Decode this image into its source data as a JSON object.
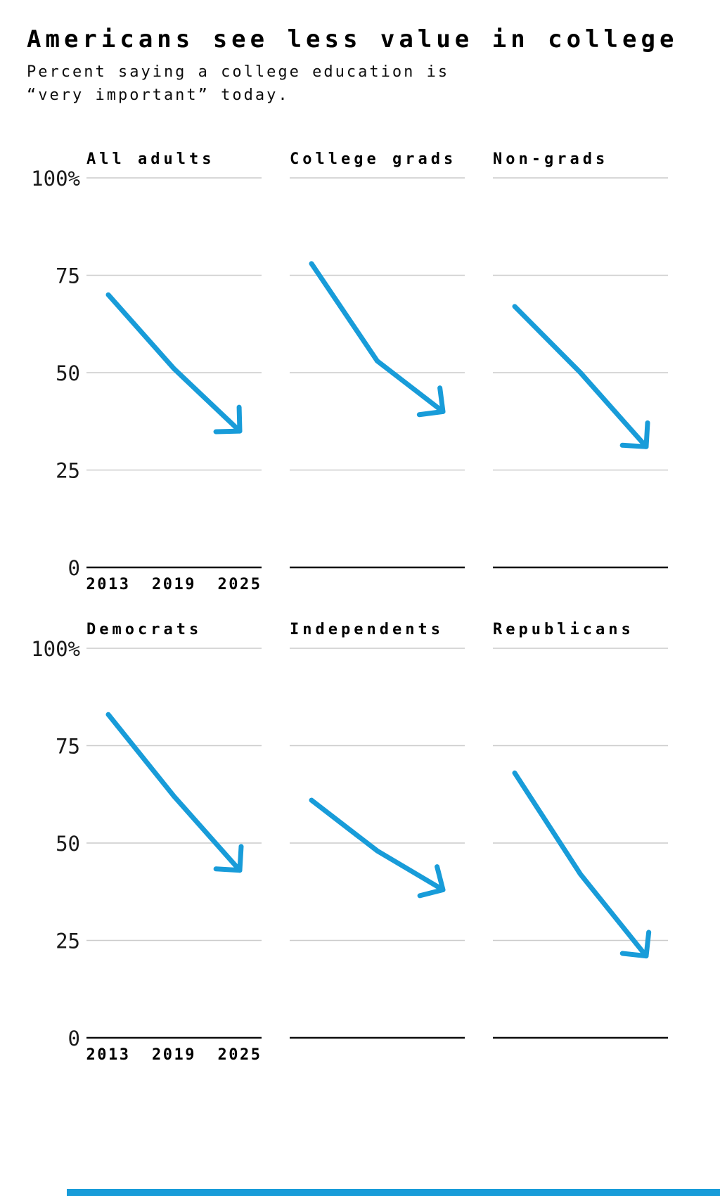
{
  "header": {
    "title": "Americans see less value in college",
    "subtitle_line1": "Percent saying a college education is",
    "subtitle_line2": "“very important” today."
  },
  "chart_data": {
    "type": "line",
    "title": "Americans see less value in college",
    "subtitle": "Percent saying a college education is “very important” today.",
    "x": [
      2013,
      2019,
      2025
    ],
    "x_tick_labels": [
      "2013",
      "2019",
      "2025"
    ],
    "y_axis_ticks": [
      "100%",
      "75",
      "50",
      "25",
      "0"
    ],
    "ylim": [
      0,
      100
    ],
    "y_gridline_values": [
      100,
      75,
      50,
      25,
      0
    ],
    "grid": true,
    "legend": "none",
    "line_style": "arrow-at-end",
    "line_color": "#189CD9",
    "gridline_color": "#cccccc",
    "axis_color": "#0d0d0d",
    "panels": [
      {
        "title": "All adults",
        "values": [
          70,
          51,
          35
        ]
      },
      {
        "title": "College grads",
        "values": [
          78,
          53,
          40
        ]
      },
      {
        "title": "Non-grads",
        "values": [
          67,
          50,
          31
        ]
      },
      {
        "title": "Democrats",
        "values": [
          83,
          62,
          43
        ]
      },
      {
        "title": "Independents",
        "values": [
          61,
          48,
          38
        ]
      },
      {
        "title": "Republicans",
        "values": [
          68,
          42,
          21
        ]
      }
    ]
  }
}
